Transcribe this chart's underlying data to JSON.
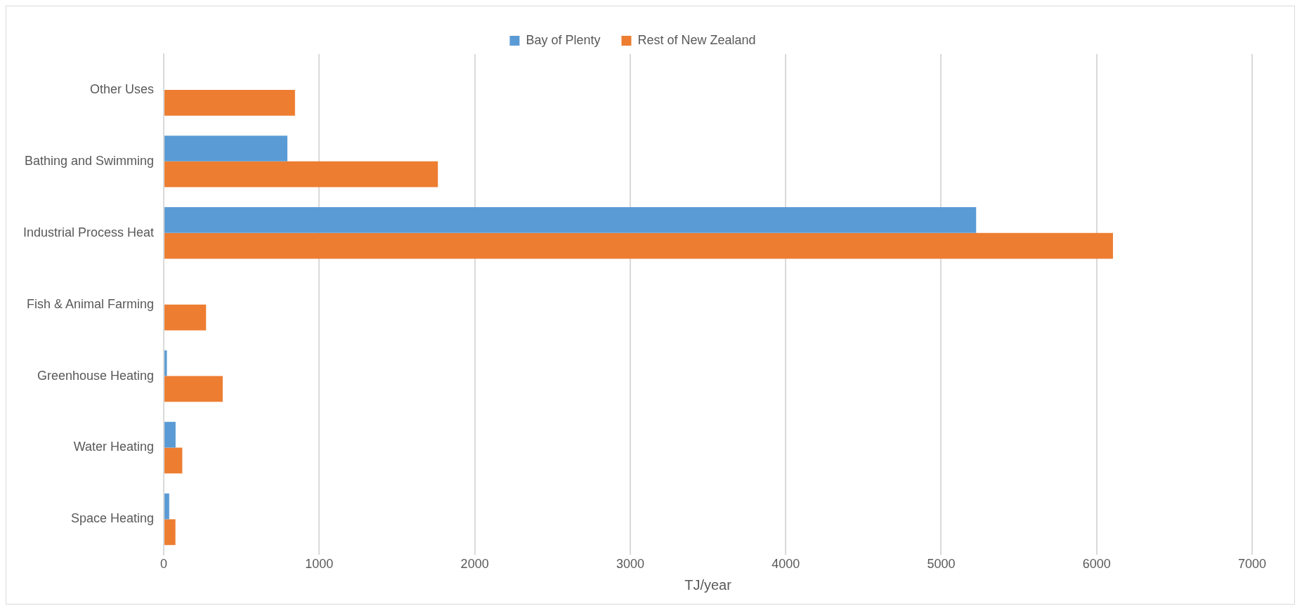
{
  "chart_data": {
    "type": "bar",
    "orientation": "horizontal",
    "xlabel": "TJ/year",
    "categories": [
      "Other Uses",
      "Bathing and Swimming",
      "Industrial Process Heat",
      "Fish & Animal Farming",
      "Greenhouse Heating",
      "Water Heating",
      "Space Heating"
    ],
    "series": [
      {
        "name": "Bay of Plenty",
        "color": "#5b9bd5",
        "values": [
          null,
          795,
          5225,
          0,
          20,
          76,
          35
        ]
      },
      {
        "name": "Rest of New Zealand",
        "color": "#ed7d31",
        "values": [
          844,
          1763,
          6105,
          272,
          379,
          119,
          75
        ]
      }
    ],
    "xlim": [
      0,
      7000
    ],
    "xticks": [
      0,
      1000,
      2000,
      3000,
      4000,
      5000,
      6000,
      7000
    ],
    "grid": "x",
    "legend": "top"
  }
}
